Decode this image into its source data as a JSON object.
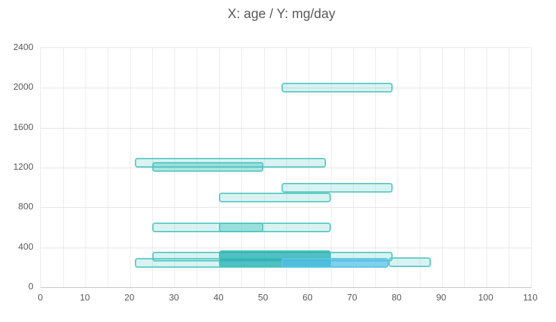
{
  "chart": {
    "title": "X: age / Y: mg/day",
    "colors": {
      "bar_teal_fill": "#4DC7C238",
      "bar_teal_border": "#50C6C0D9",
      "bar_dark_fill": "#2AAFB6C7",
      "bar_blue_fill": "#50BEE6B8",
      "gridline": "#ECECEC",
      "axis_line": "#C3C3C3",
      "text": "#595959"
    }
  },
  "chart_data": {
    "type": "bar",
    "subtype": "horizontal-range-boxes",
    "title": "X: age / Y: mg/day",
    "xlabel": "age",
    "ylabel": "mg/day",
    "xlim": [
      0,
      110
    ],
    "ylim": [
      0,
      2400
    ],
    "x_ticks": [
      0,
      10,
      20,
      30,
      40,
      50,
      60,
      70,
      80,
      90,
      100,
      110
    ],
    "x_minor_grid_step": 5,
    "y_ticks": [
      0,
      400,
      800,
      1200,
      1600,
      2000,
      2400
    ],
    "grid": true,
    "legend": false,
    "bar_y_span": 100,
    "bars": [
      {
        "x_start": 54,
        "x_end": 79,
        "y": 2000,
        "shade": "light"
      },
      {
        "x_start": 21,
        "x_end": 64,
        "y": 1250,
        "shade": "light"
      },
      {
        "x_start": 25,
        "x_end": 50,
        "y": 1205,
        "shade": "medium"
      },
      {
        "x_start": 54,
        "x_end": 79,
        "y": 1000,
        "shade": "light"
      },
      {
        "x_start": 40,
        "x_end": 65,
        "y": 900,
        "shade": "light"
      },
      {
        "x_start": 25,
        "x_end": 65,
        "y": 600,
        "shade": "light"
      },
      {
        "x_start": 40,
        "x_end": 50,
        "y": 600,
        "shade": "medium"
      },
      {
        "x_start": 25,
        "x_end": 79,
        "y": 305,
        "shade": "light"
      },
      {
        "x_start": 40,
        "x_end": 65,
        "y": 322,
        "shade": "dark"
      },
      {
        "x_start": 21,
        "x_end": 65,
        "y": 245,
        "shade": "light"
      },
      {
        "x_start": 40,
        "x_end": 65,
        "y": 253,
        "shade": "dark"
      },
      {
        "x_start": 54,
        "x_end": 78,
        "y": 248,
        "shade": "blue"
      },
      {
        "x_start": 78,
        "x_end": 87.5,
        "y": 250,
        "shade": "light"
      }
    ]
  }
}
